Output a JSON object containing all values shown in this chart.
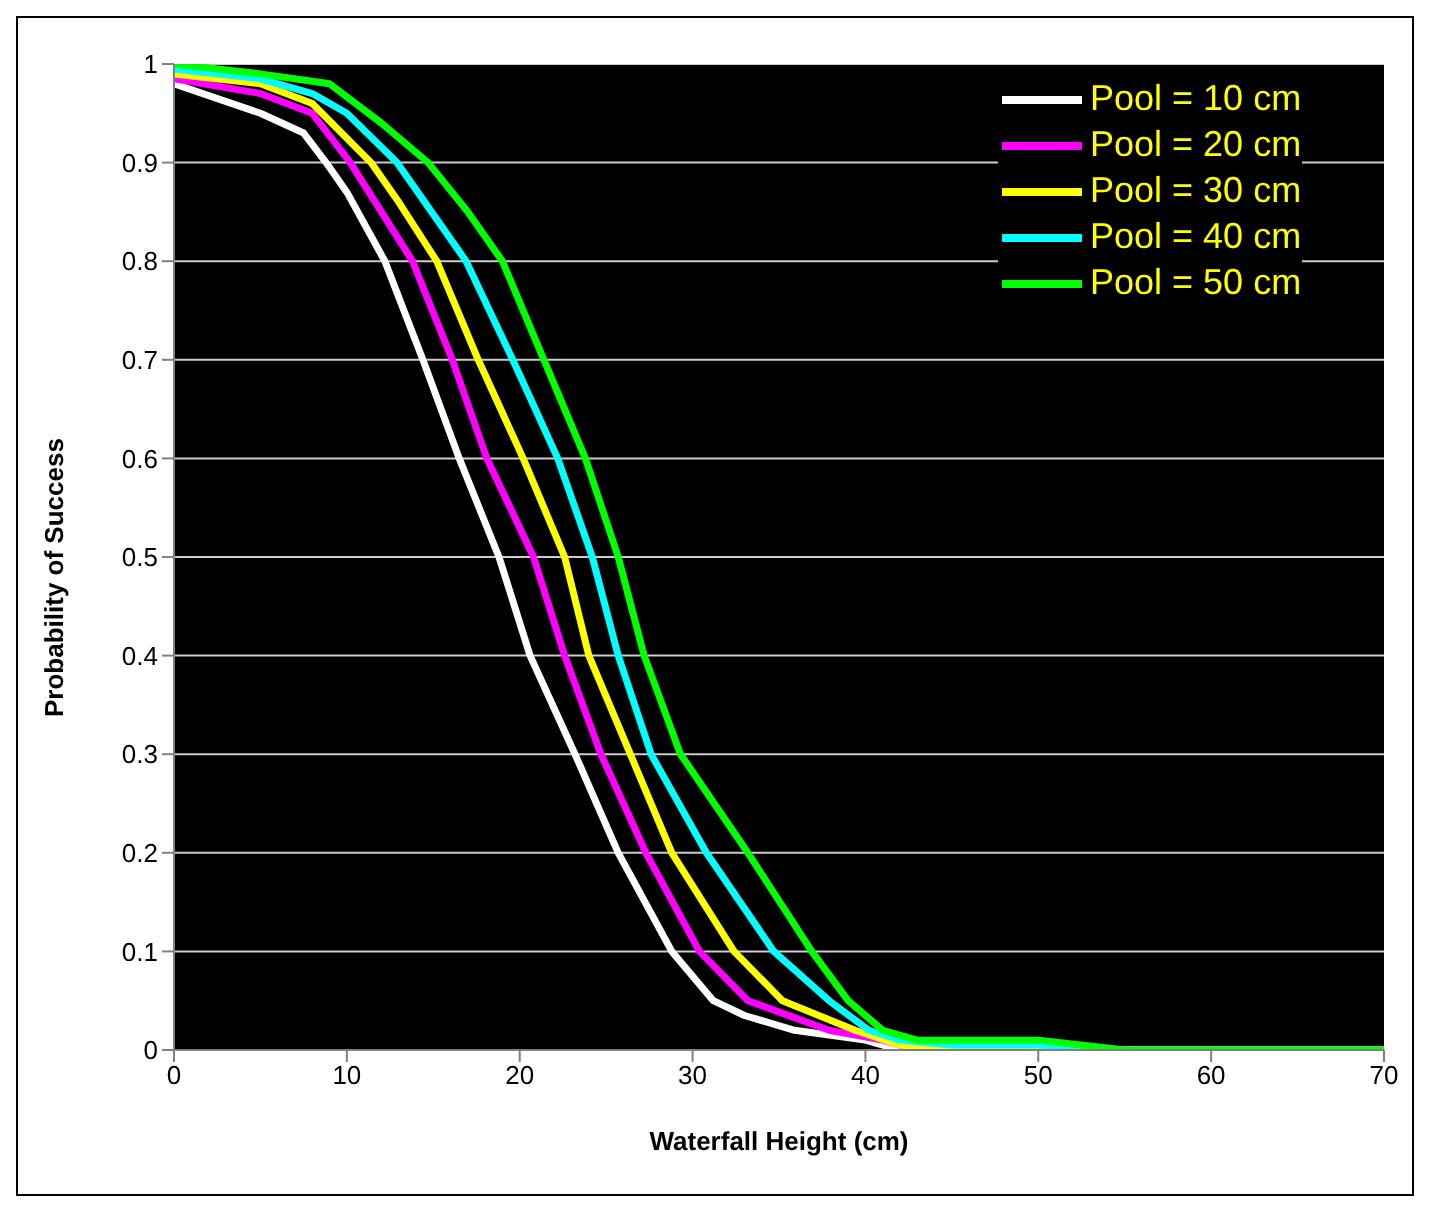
{
  "chart_data": {
    "type": "line",
    "xlabel": "Waterfall Height (cm)",
    "ylabel": "Probability of Success",
    "xlim": [
      0,
      70
    ],
    "xticks": [
      0,
      10,
      20,
      30,
      40,
      50,
      60,
      70
    ],
    "ylim": [
      0,
      1
    ],
    "yticks": [
      0,
      0.1,
      0.2,
      0.3,
      0.4,
      0.5,
      0.6,
      0.7,
      0.8,
      0.9,
      1
    ],
    "grid": "y",
    "legend": "top right",
    "marker": "none",
    "line_style": "solid",
    "series": [
      {
        "name": "Pool = 10 cm",
        "color": "#ffffff",
        "x": [
          0,
          5,
          7.5,
          8.8,
          10,
          12.2,
          14.4,
          16.5,
          18.8,
          20.6,
          23.2,
          25.7,
          28.8,
          31.2,
          33,
          35.9,
          40,
          42,
          70
        ],
        "values": [
          0.98,
          0.95,
          0.93,
          0.9,
          0.87,
          0.8,
          0.7,
          0.6,
          0.5,
          0.4,
          0.3,
          0.2,
          0.1,
          0.05,
          0.035,
          0.02,
          0.01,
          0,
          0
        ]
      },
      {
        "name": "Pool = 20 cm",
        "color": "#ff00ff",
        "x": [
          0,
          5,
          8,
          10.2,
          12,
          13.8,
          16.1,
          18.1,
          20.8,
          22.6,
          24.7,
          27.3,
          30.4,
          33.2,
          37.9,
          41,
          43,
          70
        ],
        "values": [
          0.985,
          0.97,
          0.95,
          0.9,
          0.85,
          0.8,
          0.7,
          0.6,
          0.5,
          0.4,
          0.3,
          0.2,
          0.1,
          0.05,
          0.02,
          0.01,
          0,
          0
        ]
      },
      {
        "name": "Pool = 30 cm",
        "color": "#ffff00",
        "x": [
          0,
          5,
          8,
          11.4,
          13,
          15.2,
          17.6,
          20.2,
          22.6,
          24,
          26.4,
          28.8,
          32.4,
          35.2,
          39.4,
          42,
          44,
          70
        ],
        "values": [
          0.99,
          0.98,
          0.96,
          0.9,
          0.86,
          0.8,
          0.7,
          0.6,
          0.5,
          0.4,
          0.3,
          0.2,
          0.1,
          0.05,
          0.02,
          0.005,
          0,
          0
        ]
      },
      {
        "name": "Pool = 40 cm",
        "color": "#00ffff",
        "x": [
          0,
          5,
          8,
          10,
          12.9,
          16.9,
          19.6,
          22.2,
          24.2,
          25.7,
          27.6,
          30.8,
          34.7,
          37.9,
          40.2,
          42,
          45,
          50,
          55,
          70
        ],
        "values": [
          0.995,
          0.985,
          0.97,
          0.95,
          0.9,
          0.8,
          0.7,
          0.6,
          0.5,
          0.4,
          0.3,
          0.2,
          0.1,
          0.05,
          0.02,
          0.01,
          0.005,
          0.005,
          0,
          0
        ]
      },
      {
        "name": "Pool = 50 cm",
        "color": "#00ff00",
        "x": [
          0,
          5,
          9,
          12,
          14.7,
          17,
          19,
          21.4,
          23.8,
          25.7,
          27.2,
          29.3,
          33.2,
          36.9,
          39,
          41,
          43,
          50,
          55,
          70
        ],
        "values": [
          1,
          0.99,
          0.98,
          0.94,
          0.9,
          0.85,
          0.8,
          0.7,
          0.6,
          0.5,
          0.4,
          0.3,
          0.2,
          0.1,
          0.05,
          0.02,
          0.01,
          0.01,
          0,
          0
        ]
      }
    ]
  }
}
